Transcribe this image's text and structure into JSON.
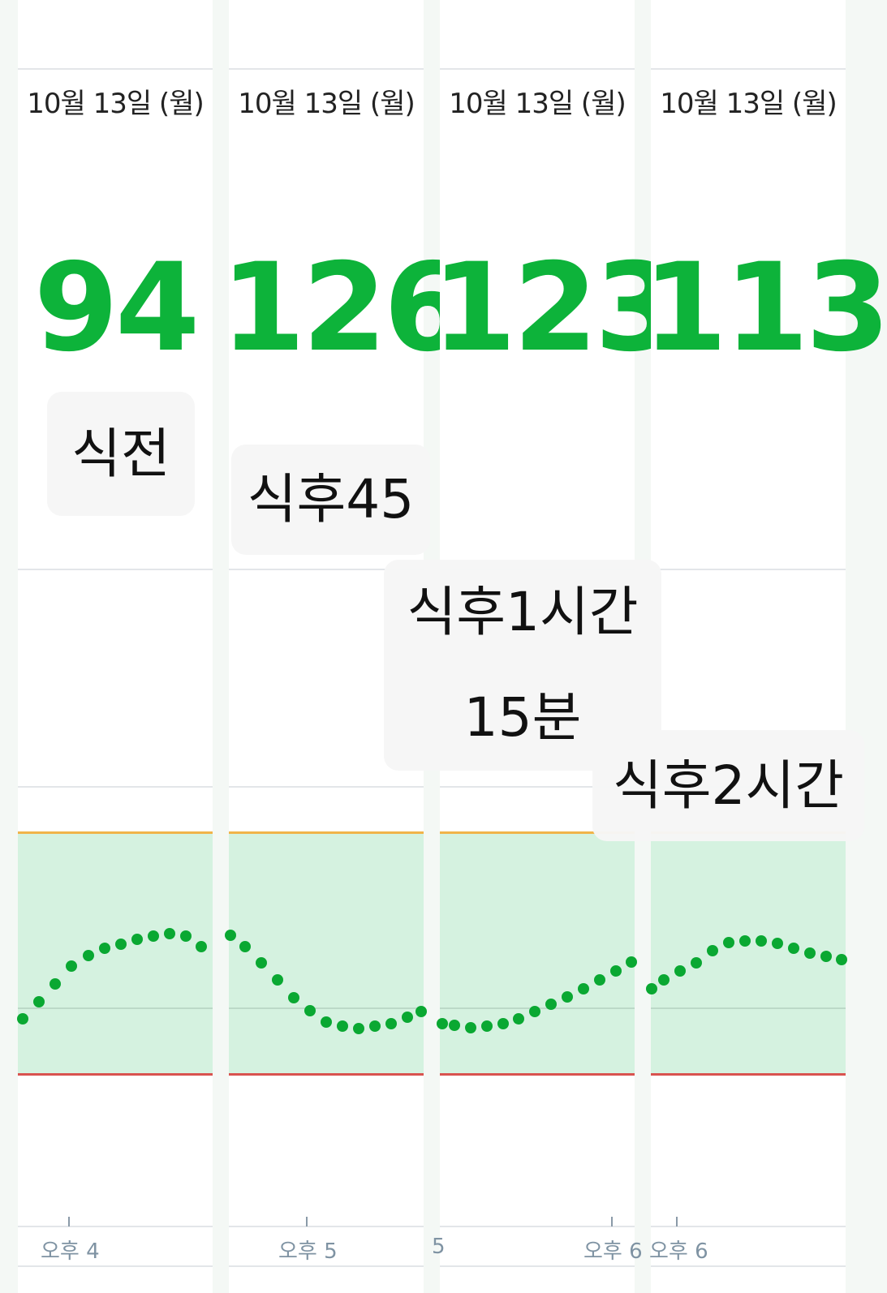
{
  "colors": {
    "value": "#0db33a",
    "target_band": "#d5f2e0",
    "high_line": "#f0b44a",
    "low_line": "#d9534f",
    "dot": "#0aa832"
  },
  "panels": [
    {
      "date": "10월 13일 (월)",
      "value": "94",
      "axis_labels": [
        "오후 4"
      ]
    },
    {
      "date": "10월 13일 (월)",
      "value": "126",
      "axis_labels": [
        "오후 5"
      ]
    },
    {
      "date": "10월 13일 (월)",
      "value": "123",
      "axis_labels": [
        "5",
        "오후 6"
      ]
    },
    {
      "date": "10월 13일 (월)",
      "value": "113",
      "axis_labels": [
        "오후 6"
      ]
    }
  ],
  "tags": [
    "식전",
    "식후45",
    "식후1시간\n15분",
    "식후2시간"
  ]
}
